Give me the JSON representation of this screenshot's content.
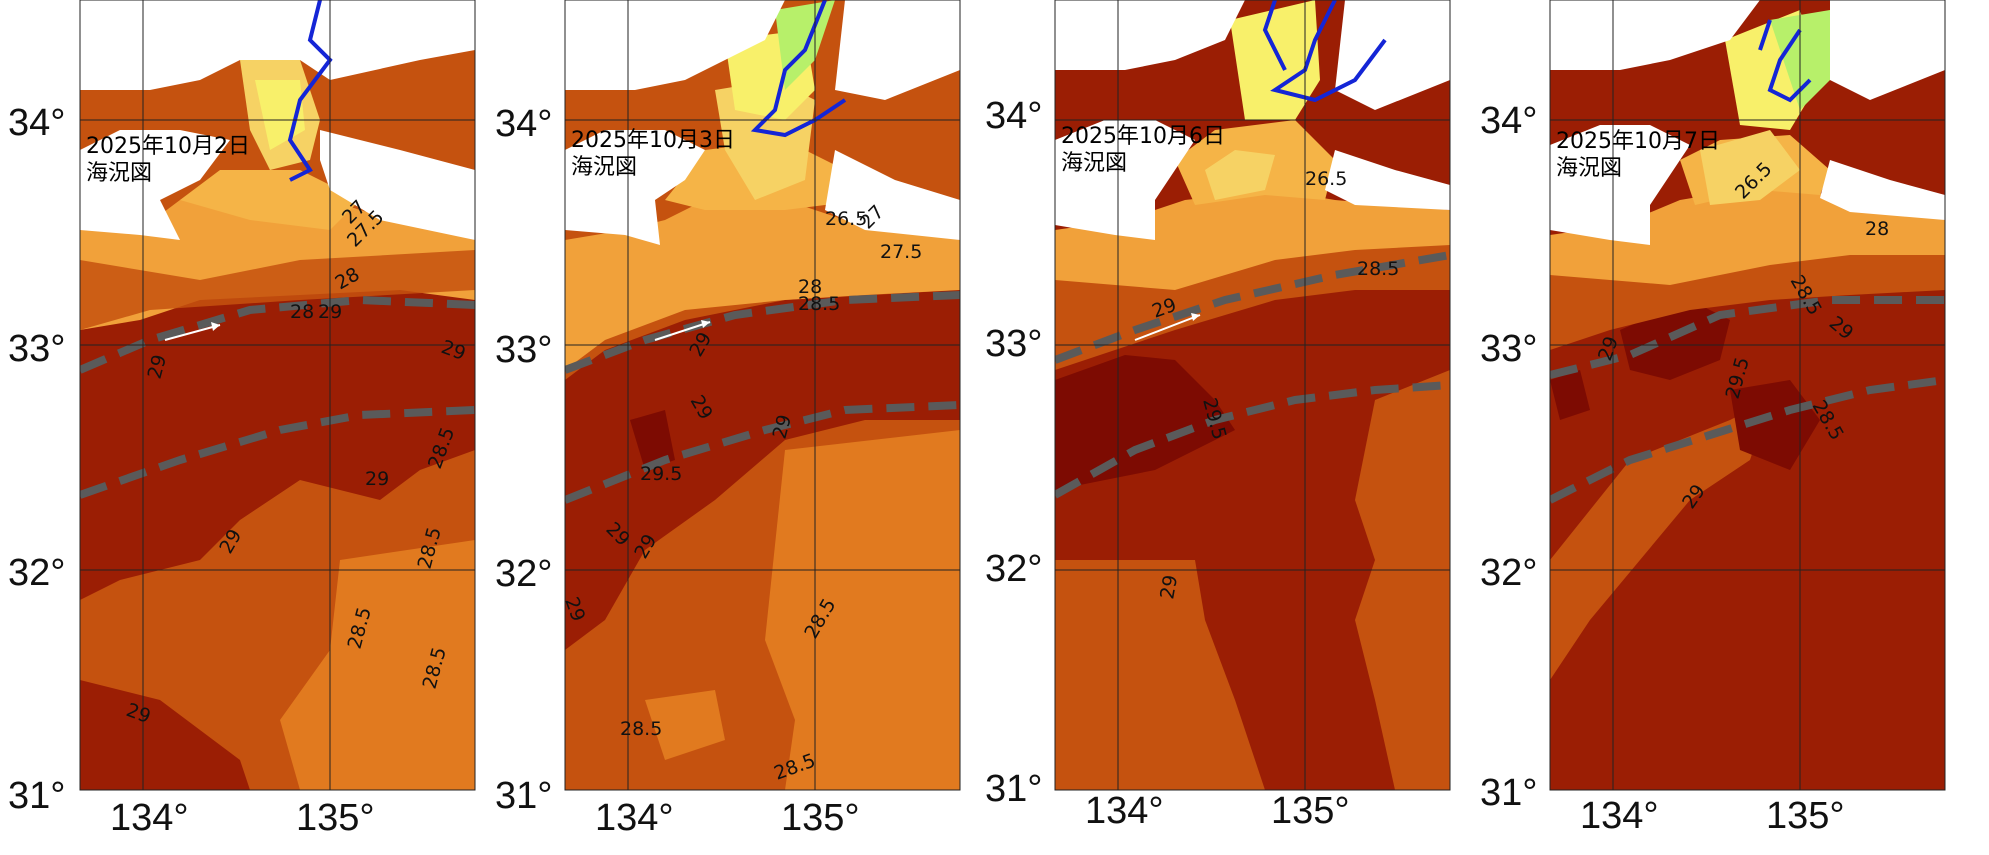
{
  "panels": [
    {
      "date": "2025年10月2日",
      "subtitle": "海況図",
      "lat_labels": [
        "34°",
        "33°",
        "32°",
        "31°"
      ],
      "lon_labels": [
        "134°",
        "135°"
      ],
      "contour_labels": [
        "27",
        "27.5",
        "28",
        "28",
        "29",
        "29",
        "29",
        "29",
        "28.5",
        "28.5",
        "28.5",
        "28.5",
        "29",
        "29"
      ]
    },
    {
      "date": "2025年10月3日",
      "subtitle": "海況図",
      "lat_labels": [
        "34°",
        "33°",
        "32°",
        "31°"
      ],
      "lon_labels": [
        "134°",
        "135°"
      ],
      "contour_labels": [
        "26.5",
        "27",
        "27.5",
        "28",
        "28.5",
        "29",
        "29",
        "29.5",
        "29",
        "29",
        "29",
        "28.5",
        "28.5",
        "28.5",
        "29"
      ]
    },
    {
      "date": "2025年10月6日",
      "subtitle": "海況図",
      "lat_labels": [
        "34°",
        "33°",
        "32°",
        "31°"
      ],
      "lon_labels": [
        "134°",
        "135°"
      ],
      "contour_labels": [
        "26.5",
        "28.5",
        "29",
        "29.5",
        "29"
      ]
    },
    {
      "date": "2025年10月7日",
      "subtitle": "海況図",
      "lat_labels": [
        "34°",
        "33°",
        "32°",
        "31°"
      ],
      "lon_labels": [
        "134°",
        "135°"
      ],
      "contour_labels": [
        "26.5",
        "28",
        "28.5",
        "29",
        "29",
        "29.5",
        "28.5",
        "29"
      ]
    }
  ],
  "colors": {
    "land": "#ffffff",
    "sst_25_26": "#b7f06a",
    "sst_26_26_5": "#f8f06a",
    "sst_26_5_27": "#f6d264",
    "sst_27_27_5": "#f5b447",
    "sst_27_5_28": "#f1a13a",
    "sst_28_28_5": "#e17a1f",
    "sst_28_5_29": "#c5520f",
    "sst_29_29_5": "#9b1e04",
    "sst_29_5_plus": "#7d0b02",
    "kuroshio_axis": "#5a5a5a",
    "bay_isotherm": "#1425d6",
    "contour_line": "#5566cc"
  }
}
